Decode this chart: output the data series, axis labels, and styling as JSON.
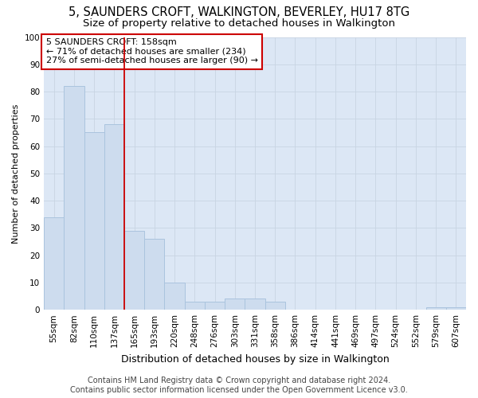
{
  "title_line1": "5, SAUNDERS CROFT, WALKINGTON, BEVERLEY, HU17 8TG",
  "title_line2": "Size of property relative to detached houses in Walkington",
  "xlabel": "Distribution of detached houses by size in Walkington",
  "ylabel": "Number of detached properties",
  "categories": [
    "55sqm",
    "82sqm",
    "110sqm",
    "137sqm",
    "165sqm",
    "193sqm",
    "220sqm",
    "248sqm",
    "276sqm",
    "303sqm",
    "331sqm",
    "358sqm",
    "386sqm",
    "414sqm",
    "441sqm",
    "469sqm",
    "497sqm",
    "524sqm",
    "552sqm",
    "579sqm",
    "607sqm"
  ],
  "values": [
    34,
    82,
    65,
    68,
    29,
    26,
    10,
    3,
    3,
    4,
    4,
    3,
    0,
    0,
    0,
    0,
    0,
    0,
    0,
    1,
    1
  ],
  "bar_color": "#cddcee",
  "bar_edge_color": "#aac4de",
  "vline_x": 3.5,
  "vline_color": "#cc0000",
  "annotation_text": "5 SAUNDERS CROFT: 158sqm\n← 71% of detached houses are smaller (234)\n27% of semi-detached houses are larger (90) →",
  "annotation_box_facecolor": "#ffffff",
  "annotation_box_edgecolor": "#cc0000",
  "ylim": [
    0,
    100
  ],
  "yticks": [
    0,
    10,
    20,
    30,
    40,
    50,
    60,
    70,
    80,
    90,
    100
  ],
  "grid_color": "#c8d4e3",
  "plot_bg_color": "#dce7f5",
  "fig_bg_color": "#ffffff",
  "footer_line1": "Contains HM Land Registry data © Crown copyright and database right 2024.",
  "footer_line2": "Contains public sector information licensed under the Open Government Licence v3.0.",
  "title_fontsize": 10.5,
  "subtitle_fontsize": 9.5,
  "xlabel_fontsize": 9,
  "ylabel_fontsize": 8,
  "tick_fontsize": 7.5,
  "annotation_fontsize": 8,
  "footer_fontsize": 7
}
